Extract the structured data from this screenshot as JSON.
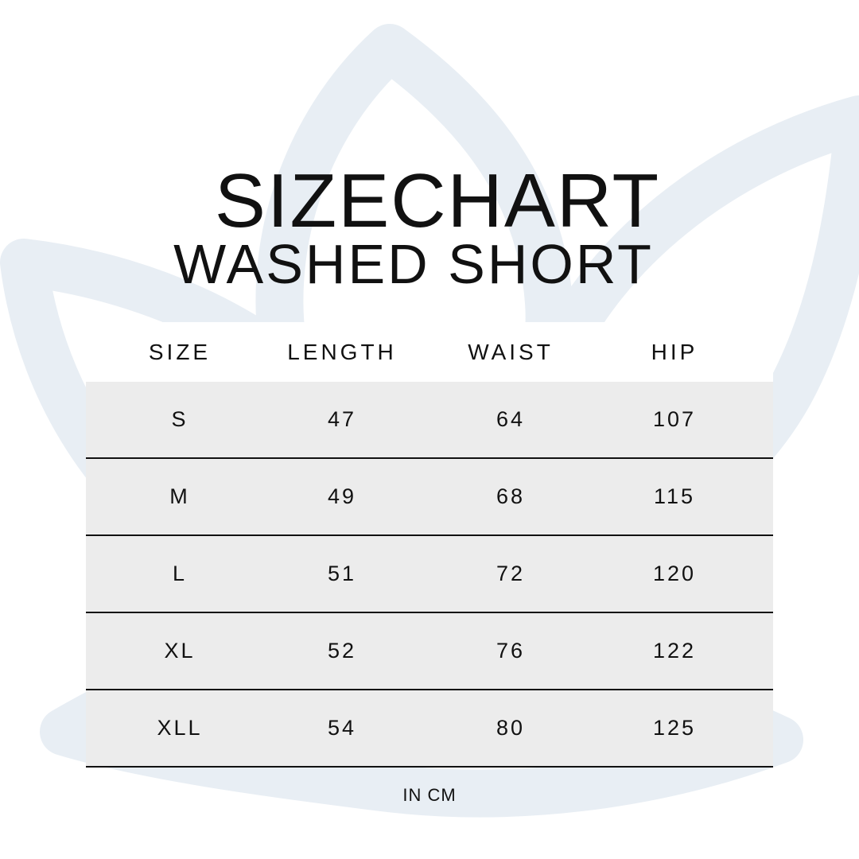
{
  "title": "SIZECHART",
  "subtitle": "WASHED SHORT",
  "table": {
    "headers": [
      "SIZE",
      "LENGTH",
      "WAIST",
      "HIP"
    ],
    "rows": [
      [
        "S",
        "47",
        "64",
        "107"
      ],
      [
        "M",
        "49",
        "68",
        "115"
      ],
      [
        "L",
        "51",
        "72",
        "120"
      ],
      [
        "XL",
        "52",
        "76",
        "122"
      ],
      [
        "XLL",
        "54",
        "80",
        "125"
      ]
    ]
  },
  "unit_note": "IN CM",
  "colors": {
    "background_logo": "#e8eef4",
    "row_fill": "#ececec",
    "text": "#111111"
  },
  "background_icon": "lotus-icon"
}
